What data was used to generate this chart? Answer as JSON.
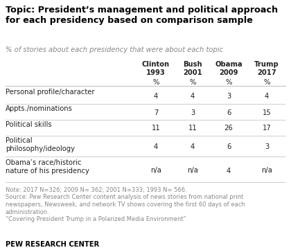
{
  "title": "Topic: President’s management and political approach\nfor each presidency based on comparison sample",
  "subtitle": "% of stories about each presidency that were about each topic",
  "columns": [
    "Clinton\n1993",
    "Bush\n2001",
    "Obama\n2009",
    "Trump\n2017"
  ],
  "rows": [
    "Personal profile/character",
    "Appts./nominations",
    "Political skills",
    "Political\nphilosophy/ideology",
    "Obama’s race/historic\nnature of his presidency"
  ],
  "data": [
    [
      "4",
      "4",
      "3",
      "4"
    ],
    [
      "7",
      "3",
      "6",
      "15"
    ],
    [
      "11",
      "11",
      "26",
      "17"
    ],
    [
      "4",
      "4",
      "6",
      "3"
    ],
    [
      "n/a",
      "n/a",
      "4",
      "n/a"
    ]
  ],
  "note1": "Note: 2017 N=326; 2009 N= 362; 2001 N=333; 1993 N= 566.",
  "note2": "Source: Pew Research Center content analysis of news stories from national print\nnewspapers, Newsweek, and network TV shows covering the first 60 days of each\nadministration.",
  "note3": "“Covering President Trump in a Polarized Media Environment”",
  "footer": "PEW RESEARCH CENTER",
  "title_color": "#000000",
  "subtitle_color": "#888888",
  "header_color": "#222222",
  "cell_color": "#222222",
  "note_color": "#888888",
  "footer_color": "#000000",
  "bg_color": "#ffffff",
  "line_color": "#bbbbbb"
}
